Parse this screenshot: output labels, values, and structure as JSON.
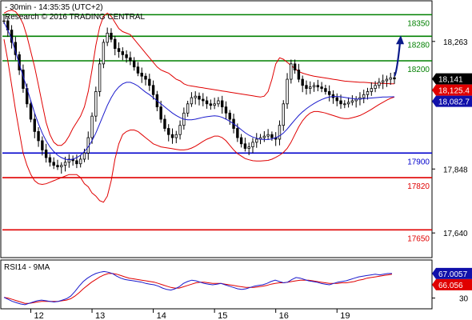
{
  "header": {
    "line1": "- 30min - 14:35:35 (UTC+2)",
    "line2": "Research © 2016 TRADING CENTRAL"
  },
  "colors": {
    "background": "#ffffff",
    "candle": "#000000",
    "ma": "#1a1acc",
    "bollinger": "#e00000",
    "support_resistance_green": "#008000",
    "support_red": "#e00000",
    "pivot_blue": "#0000cc",
    "forecast_arrow": "#0a1a8a",
    "last_price_box": "#000000",
    "upper_band_box": "#e00000",
    "ma_box": "#1010aa",
    "rsi_line": "#1a1acc",
    "rsi_ma": "#e00000"
  },
  "chart_data": [
    {
      "type": "candlestick",
      "ylim": [
        17565,
        18390
      ],
      "x_tick_labels": [
        "12",
        "13",
        "14",
        "15",
        "16",
        "19"
      ],
      "price_axis_labels": [
        "18,263",
        "17,848",
        "17,640"
      ],
      "levels": [
        {
          "value": 18350,
          "label": "18350",
          "color": "#008000"
        },
        {
          "value": 18280,
          "label": "18280",
          "color": "#008000"
        },
        {
          "value": 18200,
          "label": "18200",
          "color": "#008000"
        },
        {
          "value": 17900,
          "label": "17900",
          "color": "#0000cc"
        },
        {
          "value": 17820,
          "label": "17820",
          "color": "#e00000"
        },
        {
          "value": 17650,
          "label": "17650",
          "color": "#e00000"
        }
      ],
      "value_boxes": [
        {
          "value": 18141,
          "label": "18,141",
          "color": "#000000"
        },
        {
          "value": 18125.4,
          "label": "18,125.4",
          "color": "#e00000"
        },
        {
          "value": 18082.7,
          "label": "18,082.7",
          "color": "#1010aa"
        }
      ],
      "forecast": {
        "from": 18150,
        "to": 18275
      },
      "series": [
        {
          "kind": "price",
          "values": [
            18330,
            18300,
            18260,
            18220,
            18170,
            18110,
            18060,
            18010,
            17970,
            17940,
            17910,
            17885,
            17870,
            17860,
            17855,
            17860,
            17870,
            17880,
            17875,
            17865,
            17880,
            17900,
            17950,
            18020,
            18100,
            18190,
            18260,
            18290,
            18270,
            18240,
            18230,
            18220,
            18210,
            18200,
            18180,
            18160,
            18150,
            18140,
            18120,
            18090,
            18050,
            18010,
            17980,
            17960,
            17950,
            17960,
            17990,
            18030,
            18060,
            18080,
            18085,
            18075,
            18070,
            18060,
            18055,
            18060,
            18070,
            18050,
            18030,
            18010,
            17980,
            17950,
            17930,
            17915,
            17920,
            17935,
            17945,
            17950,
            17955,
            17960,
            17950,
            17945,
            17990,
            18060,
            18140,
            18190,
            18170,
            18140,
            18120,
            18110,
            18115,
            18120,
            18115,
            18110,
            18100,
            18090,
            18080,
            18070,
            18060,
            18060,
            18065,
            18070,
            18075,
            18080,
            18090,
            18100,
            18110,
            18120,
            18130,
            18135,
            18140,
            18145,
            18141
          ]
        },
        {
          "kind": "ma",
          "values": [
            18325,
            18300,
            18270,
            18230,
            18190,
            18150,
            18110,
            18070,
            18030,
            17995,
            17965,
            17940,
            17920,
            17905,
            17893,
            17885,
            17880,
            17878,
            17880,
            17885,
            17893,
            17905,
            17920,
            17940,
            17965,
            17995,
            18025,
            18055,
            18080,
            18100,
            18115,
            18125,
            18130,
            18130,
            18125,
            18118,
            18108,
            18098,
            18090,
            18080,
            18070,
            18060,
            18050,
            18040,
            18030,
            18022,
            18015,
            18010,
            18008,
            18008,
            18010,
            18013,
            18016,
            18018,
            18020,
            18021,
            18020,
            18016,
            18010,
            18003,
            17995,
            17986,
            17976,
            17966,
            17958,
            17952,
            17948,
            17945,
            17944,
            17944,
            17946,
            17950,
            17956,
            17965,
            17978,
            17993,
            18008,
            18022,
            18034,
            18044,
            18053,
            18061,
            18068,
            18074,
            18079,
            18082,
            18084,
            18084,
            18083,
            18081,
            18079,
            18077,
            18076,
            18076,
            18077,
            18078,
            18079,
            18080,
            18081,
            18082,
            18082,
            18083,
            18083
          ]
        },
        {
          "kind": "bb_upper",
          "values": [
            18355,
            18362,
            18365,
            18360,
            18345,
            18320,
            18280,
            18230,
            18180,
            18120,
            18060,
            18000,
            17960,
            17935,
            17925,
            17925,
            17935,
            17955,
            17980,
            18000,
            18020,
            18050,
            18100,
            18170,
            18250,
            18310,
            18345,
            18355,
            18345,
            18325,
            18305,
            18295,
            18290,
            18285,
            18270,
            18255,
            18240,
            18225,
            18210,
            18195,
            18180,
            18170,
            18165,
            18160,
            18150,
            18140,
            18135,
            18125,
            18120,
            18118,
            18116,
            18114,
            18112,
            18110,
            18108,
            18106,
            18104,
            18102,
            18100,
            18098,
            18096,
            18094,
            18092,
            18090,
            18088,
            18086,
            18084,
            18082,
            18085,
            18100,
            18140,
            18190,
            18210,
            18205,
            18195,
            18185,
            18175,
            18165,
            18160,
            18156,
            18153,
            18150,
            18148,
            18146,
            18144,
            18142,
            18140,
            18138,
            18136,
            18134,
            18133,
            18132,
            18131,
            18130,
            18130,
            18129,
            18128,
            18127,
            18127,
            18126,
            18126,
            18125,
            18125
          ]
        },
        {
          "kind": "bb_lower",
          "values": [
            18270,
            18200,
            18120,
            18040,
            17970,
            17900,
            17860,
            17830,
            17810,
            17800,
            17798,
            17800,
            17805,
            17810,
            17815,
            17820,
            17825,
            17830,
            17830,
            17830,
            17820,
            17800,
            17790,
            17770,
            17760,
            17745,
            17740,
            17760,
            17810,
            17880,
            17930,
            17960,
            17970,
            17975,
            17975,
            17970,
            17960,
            17950,
            17940,
            17930,
            17925,
            17920,
            17918,
            17916,
            17914,
            17912,
            17910,
            17910,
            17912,
            17916,
            17922,
            17930,
            17938,
            17945,
            17950,
            17955,
            17955,
            17950,
            17940,
            17925,
            17910,
            17898,
            17890,
            17882,
            17878,
            17875,
            17874,
            17874,
            17875,
            17876,
            17880,
            17886,
            17893,
            17902,
            17915,
            17935,
            17960,
            17985,
            18005,
            18020,
            18030,
            18035,
            18035,
            18033,
            18030,
            18026,
            18022,
            18018,
            18014,
            18012,
            18012,
            18015,
            18018,
            18022,
            18028,
            18035,
            18042,
            18050,
            18058,
            18065,
            18072,
            18078,
            18082
          ]
        }
      ]
    },
    {
      "type": "line",
      "title": "RSI14 - 9MA",
      "ylim": [
        15,
        85
      ],
      "y_tick_labels": [
        "30"
      ],
      "value_boxes": [
        {
          "value": 67.0057,
          "label": "67.0057",
          "color": "#1010aa"
        },
        {
          "value": 66.056,
          "label": "66.056",
          "color": "#e00000"
        }
      ],
      "series": [
        {
          "kind": "rsi",
          "values": [
            31,
            28,
            25,
            23,
            21,
            20,
            22,
            24,
            26,
            27,
            26,
            25,
            24,
            25,
            27,
            29,
            33,
            40,
            48,
            55,
            60,
            64,
            67,
            69,
            70,
            69,
            67,
            63,
            60,
            58,
            57,
            56,
            55,
            54,
            52,
            51,
            50,
            48,
            45,
            43,
            42,
            44,
            47,
            52,
            55,
            57,
            56,
            54,
            52,
            51,
            50,
            51,
            52,
            50,
            48,
            46,
            44,
            43,
            44,
            46,
            48,
            49,
            50,
            52,
            55,
            57,
            55,
            53,
            54,
            58,
            61,
            60,
            58,
            56,
            55,
            54,
            52,
            51,
            50,
            52,
            54,
            55,
            56,
            58,
            60,
            62,
            63,
            64,
            65,
            66,
            65,
            66,
            67,
            67
          ]
        },
        {
          "kind": "rsi_ma",
          "values": [
            31,
            30,
            28,
            26,
            24,
            22,
            22,
            23,
            24,
            25,
            25,
            25,
            25,
            25,
            26,
            27,
            29,
            33,
            38,
            44,
            49,
            54,
            58,
            62,
            65,
            67,
            67,
            66,
            64,
            62,
            60,
            59,
            58,
            57,
            56,
            55,
            54,
            52,
            50,
            48,
            46,
            45,
            45,
            47,
            49,
            51,
            53,
            54,
            54,
            53,
            52,
            52,
            52,
            51,
            50,
            49,
            48,
            47,
            46,
            46,
            46,
            47,
            48,
            49,
            51,
            52,
            53,
            53,
            54,
            55,
            56,
            57,
            57,
            57,
            56,
            55,
            54,
            53,
            52,
            52,
            52,
            53,
            53,
            54,
            55,
            57,
            58,
            60,
            61,
            62,
            63,
            64,
            65,
            66
          ]
        }
      ]
    }
  ]
}
